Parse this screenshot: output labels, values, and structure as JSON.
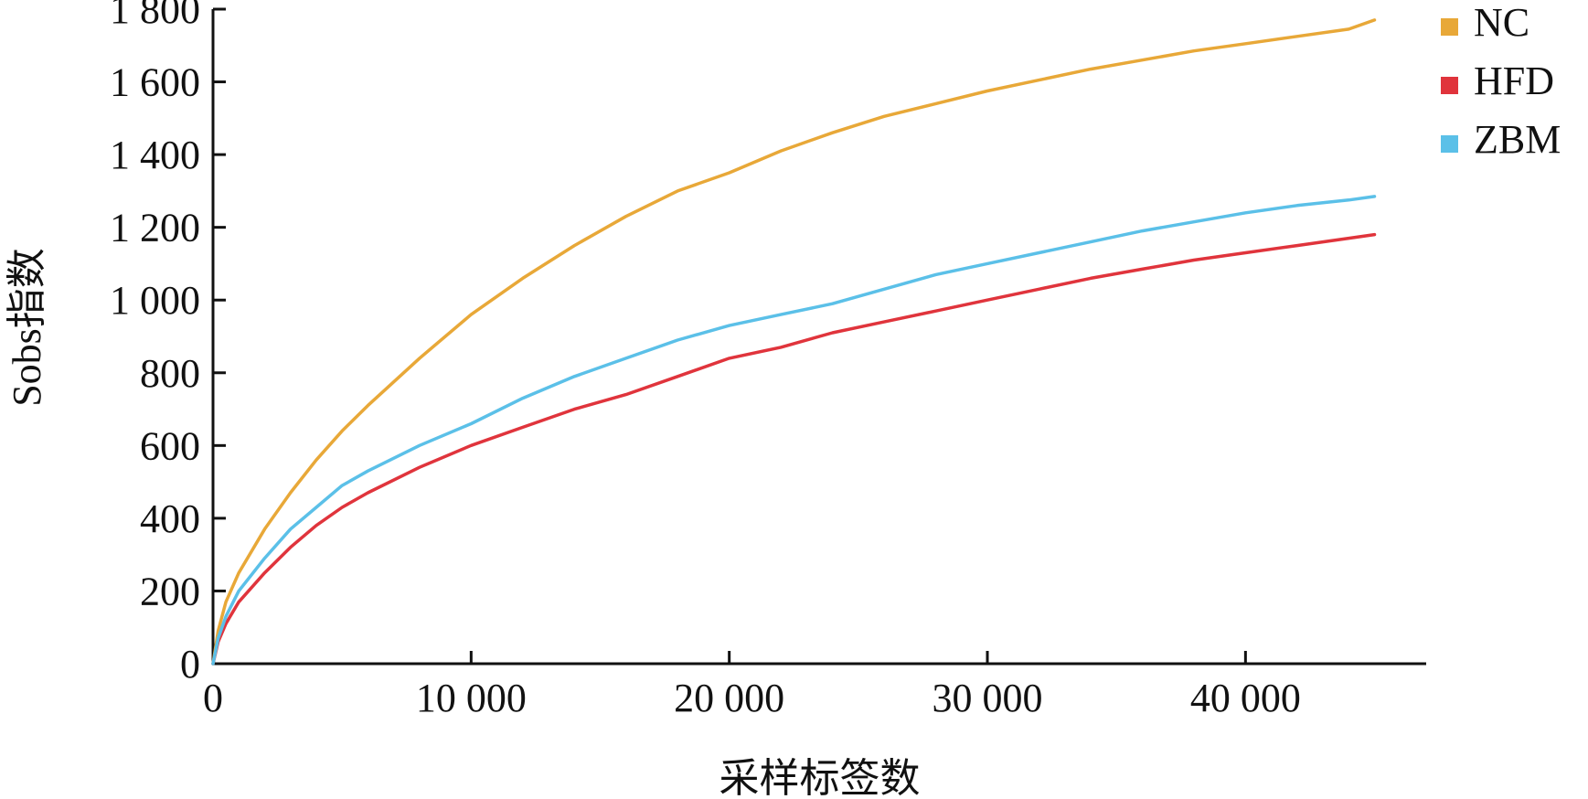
{
  "chart_data": {
    "type": "line",
    "title": "",
    "xlabel": "采样标签数",
    "ylabel": "Sobs指数",
    "xlim": [
      0,
      47000
    ],
    "ylim": [
      0,
      1800
    ],
    "x_ticks": [
      0,
      10000,
      20000,
      30000,
      40000
    ],
    "x_tick_labels": [
      "0",
      "10 000",
      "20 000",
      "30 000",
      "40 000"
    ],
    "y_ticks": [
      0,
      200,
      400,
      600,
      800,
      1000,
      1200,
      1400,
      1600,
      1800
    ],
    "y_tick_labels": [
      "0",
      "200",
      "400",
      "600",
      "800",
      "1 000",
      "1 200",
      "1 400",
      "1 600",
      "1 800"
    ],
    "grid": false,
    "legend_position": "top-right",
    "x": [
      0,
      200,
      500,
      1000,
      2000,
      3000,
      4000,
      5000,
      6000,
      8000,
      10000,
      12000,
      14000,
      16000,
      18000,
      20000,
      22000,
      24000,
      26000,
      28000,
      30000,
      32000,
      34000,
      36000,
      38000,
      40000,
      42000,
      44000,
      45000
    ],
    "series": [
      {
        "name": "NC",
        "color": "#E8A838",
        "values": [
          0,
          90,
          170,
          250,
          370,
          470,
          560,
          640,
          710,
          840,
          960,
          1060,
          1150,
          1230,
          1300,
          1350,
          1410,
          1460,
          1505,
          1540,
          1575,
          1605,
          1635,
          1660,
          1685,
          1705,
          1725,
          1745,
          1770
        ]
      },
      {
        "name": "HFD",
        "color": "#E0343C",
        "values": [
          0,
          60,
          110,
          170,
          250,
          320,
          380,
          430,
          470,
          540,
          600,
          650,
          700,
          740,
          790,
          840,
          870,
          910,
          940,
          970,
          1000,
          1030,
          1060,
          1085,
          1110,
          1130,
          1150,
          1170,
          1180
        ]
      },
      {
        "name": "ZBM",
        "color": "#5BC0E8",
        "values": [
          0,
          70,
          130,
          200,
          290,
          370,
          430,
          490,
          530,
          600,
          660,
          730,
          790,
          840,
          890,
          930,
          960,
          990,
          1030,
          1070,
          1100,
          1130,
          1160,
          1190,
          1215,
          1240,
          1260,
          1275,
          1285
        ]
      }
    ]
  }
}
